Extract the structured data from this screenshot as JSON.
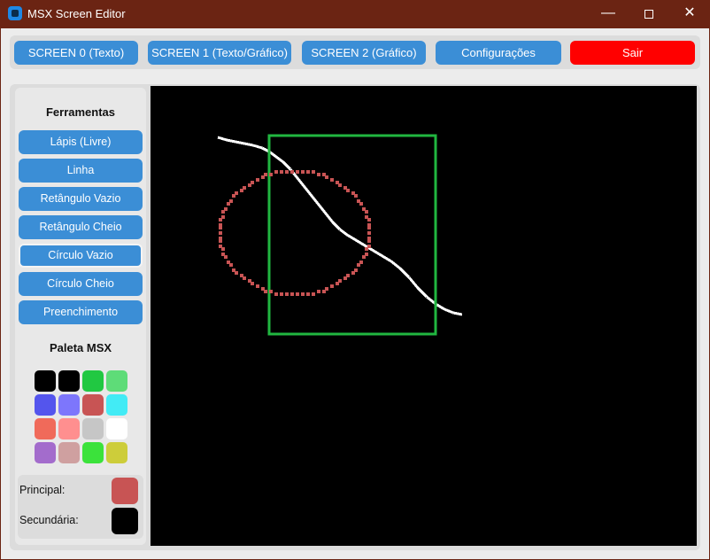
{
  "window": {
    "title": "MSX Screen Editor",
    "icon": "app-icon",
    "controls": {
      "minimize": "—",
      "maximize": "☐",
      "close": "✕"
    }
  },
  "toolbar": {
    "buttons": [
      {
        "label": "SCREEN 0 (Texto)"
      },
      {
        "label": "SCREEN 1 (Texto/Gráfico)"
      },
      {
        "label": "SCREEN 2 (Gráfico)"
      },
      {
        "label": "Configurações"
      },
      {
        "label": "Sair"
      }
    ],
    "colors": {
      "button": "#3b8ed6",
      "exit": "#ff0000"
    }
  },
  "tools": {
    "title": "Ferramentas",
    "items": [
      {
        "label": "Lápis (Livre)"
      },
      {
        "label": "Linha"
      },
      {
        "label": "Retângulo Vazio"
      },
      {
        "label": "Retângulo Cheio"
      },
      {
        "label": "Círculo Vazio"
      },
      {
        "label": "Círculo Cheio"
      },
      {
        "label": "Preenchimento"
      }
    ],
    "selected": "Círculo Vazio"
  },
  "palette": {
    "title": "Paleta MSX",
    "colors": [
      "#000000",
      "#000000",
      "#21c842",
      "#5edc78",
      "#5455ed",
      "#7d76fc",
      "#d4524d",
      "#42ebf5",
      "#fc5554",
      "#ff7978",
      "#d4c154",
      "#e6ce80",
      "#a556c4",
      "#cda6a6",
      "#3ad448",
      "#cfcf35"
    ],
    "display_colors": [
      "#000000",
      "#000000",
      "#21c842",
      "#5edc78",
      "#5455ed",
      "#7d76fc",
      "#c85454",
      "#42ebf5",
      "#f06a5a",
      "#ff8f8f",
      "#c6c6c6",
      "#ffffff",
      "#a36ccc",
      "#cfa0a0",
      "#3be23b",
      "#cdcd3a"
    ]
  },
  "selected_colors": {
    "primary_label": "Principal:",
    "primary": "#c85454",
    "secondary_label": "Secundária:",
    "secondary": "#000000"
  },
  "canvas": {
    "background": "#000000",
    "shapes": [
      {
        "kind": "line",
        "color": "#ffffff"
      },
      {
        "kind": "rectangle",
        "color": "#21b640"
      },
      {
        "kind": "circle",
        "color": "#c85454"
      }
    ]
  }
}
